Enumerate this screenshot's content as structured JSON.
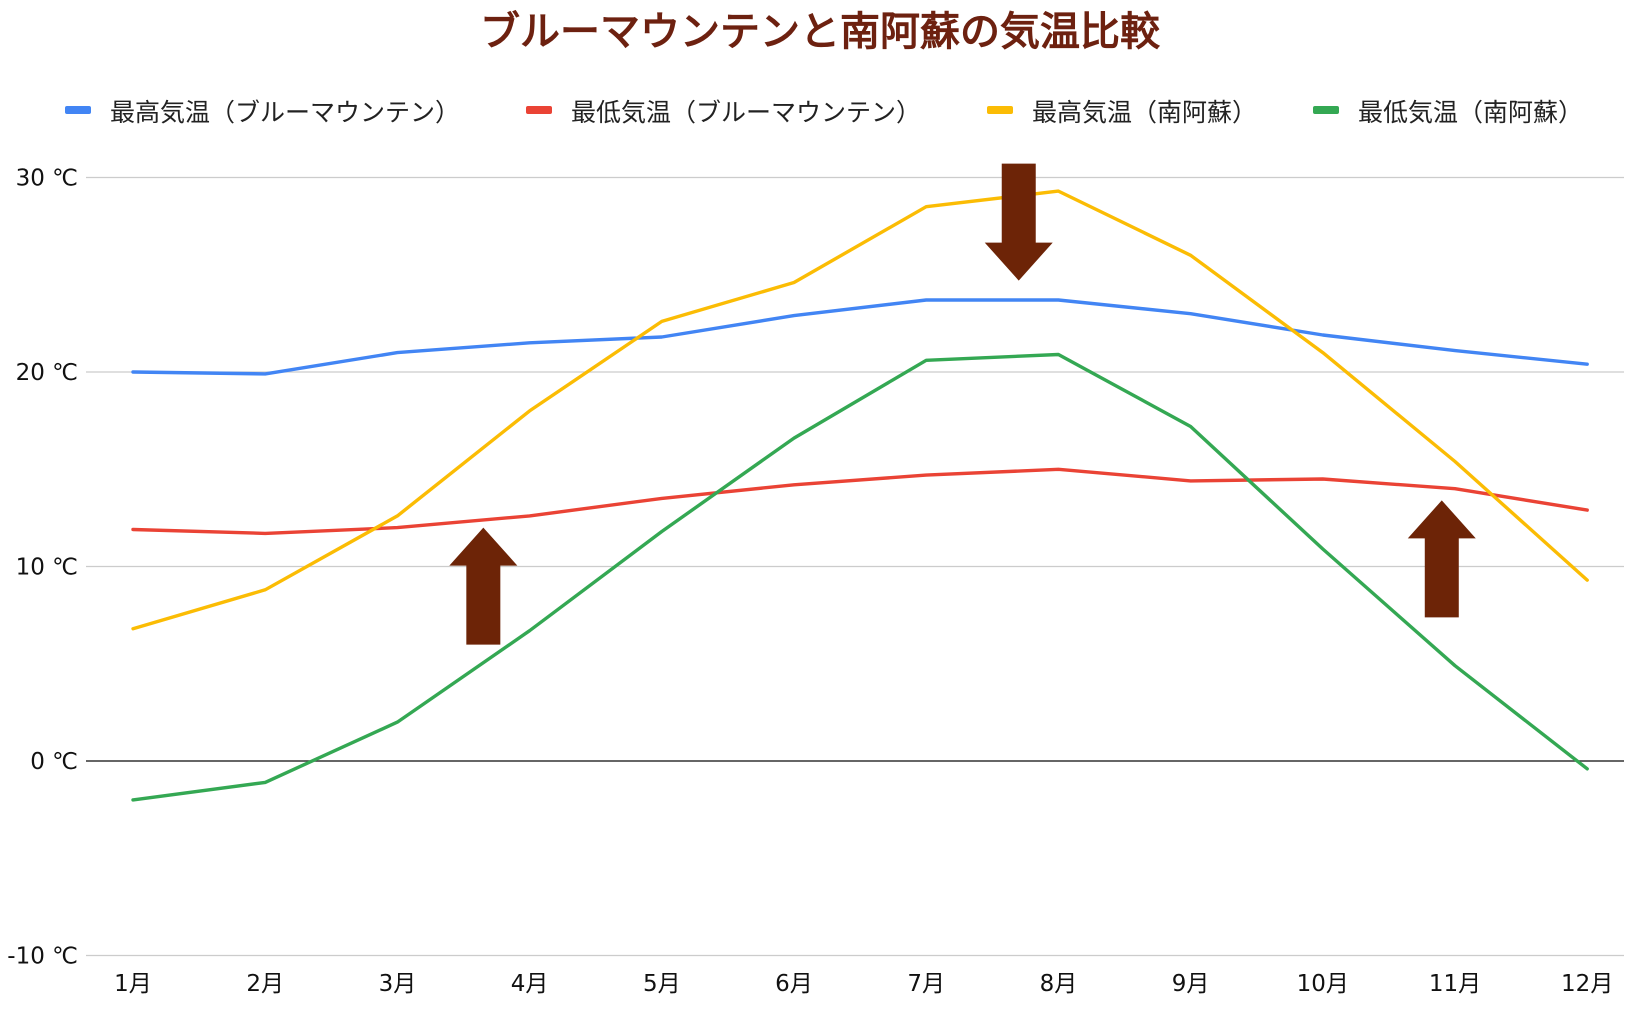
{
  "chart_data": {
    "type": "line",
    "title": "ブルーマウンテンと南阿蘇の気温比較",
    "categories": [
      "1月",
      "2月",
      "3月",
      "4月",
      "5月",
      "6月",
      "7月",
      "8月",
      "9月",
      "10月",
      "11月",
      "12月"
    ],
    "series": [
      {
        "name": "最高気温（ブルーマウンテン）",
        "color": "#4285f4",
        "values": [
          20.0,
          19.9,
          21.0,
          21.5,
          21.8,
          22.9,
          23.7,
          23.7,
          23.0,
          21.9,
          21.1,
          20.4
        ]
      },
      {
        "name": "最低気温（ブルーマウンテン）",
        "color": "#ea4335",
        "values": [
          11.9,
          11.7,
          12.0,
          12.6,
          13.5,
          14.2,
          14.7,
          15.0,
          14.4,
          14.5,
          14.0,
          12.9
        ]
      },
      {
        "name": "最高気温（南阿蘇）",
        "color": "#fbbc04",
        "values": [
          6.8,
          8.8,
          12.6,
          18.0,
          22.6,
          24.6,
          28.5,
          29.3,
          26.0,
          21.0,
          15.4,
          9.3
        ]
      },
      {
        "name": "最低気温（南阿蘇）",
        "color": "#34a853",
        "values": [
          -2.0,
          -1.1,
          2.0,
          6.7,
          11.8,
          16.6,
          20.6,
          20.9,
          17.2,
          10.9,
          4.9,
          -0.4
        ]
      }
    ],
    "y_ticks": [
      "-10 ℃",
      "0 ℃",
      "10 ℃",
      "20 ℃",
      "30 ℃"
    ],
    "y_tick_values": [
      -10,
      0,
      10,
      20,
      30
    ],
    "ylim": [
      -10,
      30
    ],
    "grid": true,
    "legend": "top",
    "title_color": "#6d2110",
    "annotations": [
      {
        "type": "arrow",
        "direction": "down",
        "x_category_index": 6.7,
        "y_value": 24.7,
        "color": "#6d2407"
      },
      {
        "type": "arrow",
        "direction": "up",
        "x_category_index": 2.65,
        "y_value": 12.0,
        "color": "#6d2407"
      },
      {
        "type": "arrow",
        "direction": "up",
        "x_category_index": 9.9,
        "y_value": 13.4,
        "color": "#6d2407"
      }
    ]
  }
}
